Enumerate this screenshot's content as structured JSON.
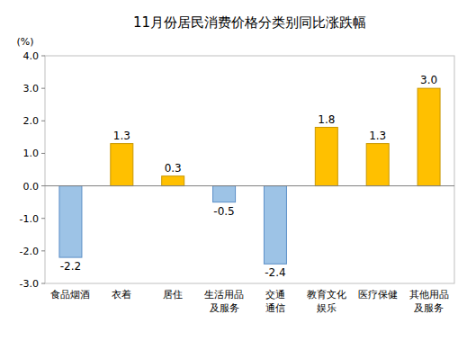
{
  "chart_data": {
    "type": "bar",
    "title": "11月份居民消费价格分类别同比涨跌幅",
    "y_label": "(%)",
    "categories": [
      "食品烟酒",
      "衣着",
      "居住",
      "生活用品\n及服务",
      "交通\n通信",
      "教育文化\n娱乐",
      "医疗保健",
      "其他用品\n及服务"
    ],
    "values": [
      -2.2,
      1.3,
      0.3,
      -0.5,
      -2.4,
      1.8,
      1.3,
      3.0
    ],
    "value_labels": [
      "-2.2",
      "1.3",
      "0.3",
      "-0.5",
      "-2.4",
      "1.8",
      "1.3",
      "3.0"
    ],
    "colors": [
      "#9dc3e6",
      "#ffc000",
      "#ffc000",
      "#9dc3e6",
      "#9dc3e6",
      "#ffc000",
      "#ffc000",
      "#ffc000"
    ],
    "ylim": [
      -3,
      4
    ],
    "yticks": [
      {
        "value": -3,
        "label": "-3.0"
      },
      {
        "value": -2,
        "label": "-2.0"
      },
      {
        "value": -1,
        "label": "-1.0"
      },
      {
        "value": 0,
        "label": "0.0"
      },
      {
        "value": 1,
        "label": "1.0"
      },
      {
        "value": 2,
        "label": "2.0"
      },
      {
        "value": 3,
        "label": "3.0"
      },
      {
        "value": 4,
        "label": "4.0"
      }
    ],
    "grid": false,
    "data_labels": true
  }
}
